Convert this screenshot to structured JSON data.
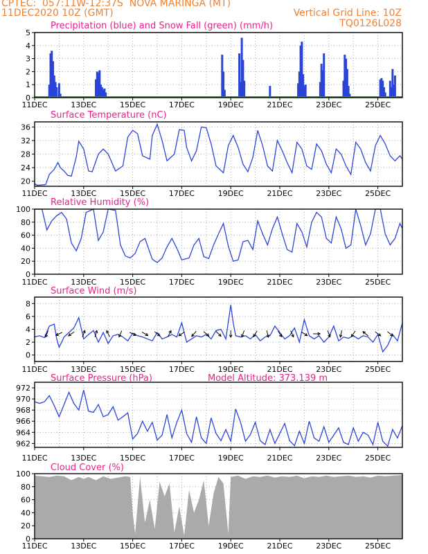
{
  "header": {
    "line1": "CPTEC:  057:11W-12:37S  NOVA MARINGA (MT)",
    "line2": "11DEC2020 10Z (GMT)",
    "grid_note": "Vertical Grid Line: 10Z",
    "model_code": "TQ0126L028"
  },
  "colors": {
    "title": "#e8208a",
    "header": "#f08030",
    "line": "#2a44d8",
    "precip": "#2a44d8",
    "snow": "#20a020",
    "cloud": "#aaaaaa",
    "axis": "#000000",
    "grid": "#999999"
  },
  "x_axis": {
    "date_range": [
      "2020-12-11T10Z",
      "2020-12-26T10Z"
    ],
    "tick_labels": [
      "11DEC",
      "13DEC",
      "15DEC",
      "17DEC",
      "19DEC",
      "21DEC",
      "23DEC",
      "25DEC"
    ],
    "tick_days": [
      0,
      2,
      4,
      6,
      8,
      10,
      12,
      14
    ],
    "grid": "vertical dotted lines at 10Z each day"
  },
  "chart_data": [
    {
      "id": "precip",
      "type": "bar",
      "title": "Precipitation (blue) and Snow Fall (green) (mm/h)",
      "ylim": [
        0,
        5
      ],
      "yticks": [
        "0",
        "1",
        "2",
        "3",
        "4",
        "5"
      ],
      "ytick_values": [
        0,
        1,
        2,
        3,
        4,
        5
      ],
      "series": [
        {
          "color_key": "precip",
          "x": [
            0.6,
            0.65,
            0.7,
            0.75,
            0.8,
            0.85,
            0.9,
            1.0,
            1.05,
            2.5,
            2.55,
            2.6,
            2.65,
            2.7,
            2.75,
            2.8,
            2.85,
            2.9,
            7.65,
            7.7,
            7.75,
            8.35,
            8.4,
            8.45,
            8.5,
            8.55,
            9.6,
            10.75,
            10.8,
            10.85,
            10.9,
            10.95,
            11.0,
            11.05,
            11.65,
            11.7,
            11.75,
            11.8,
            12.6,
            12.65,
            12.7,
            12.75,
            12.8,
            12.85,
            14.1,
            14.15,
            14.2,
            14.25,
            14.3,
            14.5,
            14.55,
            14.6,
            14.65,
            14.7
          ],
          "values": [
            1.0,
            3.4,
            3.6,
            2.8,
            1.7,
            1.2,
            0.8,
            1.1,
            0.3,
            1.4,
            2.0,
            1.9,
            2.1,
            1.0,
            0.8,
            0.6,
            0.7,
            0.4,
            3.3,
            2.0,
            0.6,
            3.4,
            1.2,
            4.6,
            2.9,
            1.3,
            0.9,
            1.1,
            2.0,
            4.0,
            4.3,
            1.8,
            0.9,
            1.0,
            1.2,
            2.6,
            2.1,
            3.4,
            1.3,
            3.3,
            3.0,
            2.2,
            0.9,
            0.3,
            1.4,
            1.5,
            1.3,
            0.8,
            0.4,
            1.3,
            0.8,
            2.2,
            1.0,
            1.7
          ]
        },
        {
          "color_key": "snow",
          "x": [
            0,
            15
          ],
          "values": [
            0,
            0
          ]
        }
      ]
    },
    {
      "id": "temp",
      "type": "line",
      "title": "Surface Temperature (nC)",
      "ylim": [
        18.5,
        37.5
      ],
      "yticks": [
        "20",
        "24",
        "28",
        "32",
        "36"
      ],
      "ytick_values": [
        20,
        24,
        28,
        32,
        36
      ],
      "series": [
        {
          "color_key": "line",
          "x": [
            0.0,
            0.1,
            0.3,
            0.45,
            0.6,
            0.8,
            0.95,
            1.05,
            1.2,
            1.35,
            1.5,
            1.7,
            1.8,
            2.0,
            2.2,
            2.35,
            2.6,
            2.8,
            3.0,
            3.3,
            3.6,
            3.8,
            4.0,
            4.2,
            4.4,
            4.7,
            4.8,
            5.0,
            5.2,
            5.4,
            5.7,
            5.9,
            6.1,
            6.2,
            6.4,
            6.6,
            6.8,
            7.0,
            7.2,
            7.4,
            7.7,
            7.9,
            8.1,
            8.3,
            8.5,
            8.7,
            8.9,
            9.1,
            9.3,
            9.5,
            9.7,
            9.9,
            10.1,
            10.3,
            10.5,
            10.7,
            10.9,
            11.1,
            11.3,
            11.5,
            11.7,
            11.9,
            12.1,
            12.3,
            12.5,
            12.7,
            12.9,
            13.1,
            13.3,
            13.5,
            13.7,
            13.9,
            14.1,
            14.3,
            14.5,
            14.7,
            14.9,
            15.0
          ],
          "values": [
            19.3,
            18.8,
            18.9,
            19.0,
            22.0,
            23.5,
            25.5,
            24.0,
            23.0,
            21.7,
            21.5,
            27.2,
            31.8,
            29.5,
            23.0,
            22.8,
            28.0,
            29.5,
            28.0,
            23.0,
            24.5,
            33.0,
            35.0,
            34.0,
            27.5,
            26.5,
            33.5,
            36.8,
            32.0,
            26.0,
            28.0,
            35.2,
            35.0,
            30.0,
            26.0,
            29.0,
            36.0,
            35.8,
            31.0,
            24.5,
            22.5,
            30.5,
            33.5,
            30.0,
            25.0,
            22.8,
            27.0,
            35.0,
            30.5,
            24.5,
            23.0,
            32.0,
            29.0,
            25.5,
            22.5,
            31.5,
            29.5,
            24.5,
            23.5,
            31.0,
            29.0,
            25.0,
            22.5,
            29.5,
            28.0,
            24.5,
            22.0,
            31.5,
            29.5,
            25.5,
            23.0,
            30.5,
            33.5,
            31.0,
            27.5,
            26.0,
            27.5,
            26.5
          ]
        }
      ]
    },
    {
      "id": "humidity",
      "type": "line",
      "title": "Relative Humidity (%)",
      "ylim": [
        0,
        100
      ],
      "yticks": [
        "0",
        "20",
        "40",
        "60",
        "80",
        "100"
      ],
      "ytick_values": [
        0,
        20,
        40,
        60,
        80,
        100
      ],
      "series": [
        {
          "color_key": "line",
          "x": [
            0.0,
            0.3,
            0.5,
            0.7,
            0.9,
            1.1,
            1.3,
            1.5,
            1.7,
            1.9,
            2.1,
            2.4,
            2.6,
            2.8,
            3.0,
            3.3,
            3.5,
            3.7,
            3.9,
            4.1,
            4.3,
            4.5,
            4.8,
            5.0,
            5.2,
            5.4,
            5.6,
            5.8,
            6.0,
            6.3,
            6.5,
            6.7,
            6.9,
            7.1,
            7.3,
            7.5,
            7.7,
            7.9,
            8.1,
            8.3,
            8.5,
            8.7,
            8.9,
            9.1,
            9.3,
            9.5,
            9.7,
            9.9,
            10.1,
            10.3,
            10.5,
            10.7,
            10.9,
            11.1,
            11.3,
            11.5,
            11.7,
            11.9,
            12.1,
            12.3,
            12.5,
            12.7,
            12.9,
            13.1,
            13.3,
            13.5,
            13.7,
            13.9,
            14.1,
            14.3,
            14.5,
            14.7,
            14.9,
            15.0
          ],
          "values": [
            100,
            100,
            68,
            82,
            90,
            95,
            85,
            48,
            36,
            55,
            95,
            100,
            52,
            65,
            100,
            98,
            45,
            28,
            25,
            32,
            50,
            55,
            23,
            18,
            25,
            42,
            55,
            40,
            22,
            25,
            45,
            55,
            27,
            24,
            45,
            62,
            78,
            43,
            20,
            22,
            50,
            52,
            38,
            82,
            62,
            45,
            70,
            88,
            62,
            38,
            34,
            78,
            65,
            42,
            80,
            95,
            88,
            55,
            48,
            88,
            70,
            40,
            45,
            100,
            75,
            45,
            62,
            100,
            100,
            62,
            45,
            55,
            78,
            70
          ]
        }
      ]
    },
    {
      "id": "wind",
      "type": "line",
      "title": "Surface Wind (m/s)",
      "ylim": [
        -1,
        9
      ],
      "yticks": [
        "0",
        "2",
        "4",
        "6",
        "8"
      ],
      "ytick_values": [
        0,
        2,
        4,
        6,
        8
      ],
      "series": [
        {
          "color_key": "line",
          "x": [
            0.0,
            0.2,
            0.4,
            0.6,
            0.8,
            0.9,
            1.0,
            1.2,
            1.4,
            1.6,
            1.8,
            2.0,
            2.2,
            2.4,
            2.6,
            2.8,
            3.0,
            3.2,
            3.4,
            3.6,
            3.8,
            4.0,
            4.2,
            4.4,
            4.6,
            4.8,
            5.0,
            5.2,
            5.4,
            5.6,
            5.8,
            6.0,
            6.2,
            6.4,
            6.6,
            6.8,
            7.0,
            7.2,
            7.4,
            7.6,
            7.8,
            8.0,
            8.1,
            8.2,
            8.4,
            8.6,
            8.8,
            9.0,
            9.2,
            9.4,
            9.6,
            9.8,
            10.0,
            10.2,
            10.4,
            10.6,
            10.8,
            11.0,
            11.2,
            11.4,
            11.6,
            11.8,
            12.0,
            12.2,
            12.4,
            12.6,
            12.8,
            13.0,
            13.2,
            13.4,
            13.6,
            13.8,
            14.0,
            14.2,
            14.4,
            14.6,
            14.8,
            15.0
          ],
          "values": [
            2.8,
            3.0,
            2.7,
            4.5,
            4.8,
            2.5,
            1.2,
            2.8,
            3.5,
            4.2,
            5.8,
            2.5,
            3.2,
            3.8,
            2.0,
            3.5,
            1.8,
            3.0,
            3.2,
            2.8,
            2.2,
            3.4,
            3.0,
            2.8,
            2.5,
            2.2,
            3.5,
            2.5,
            2.8,
            3.2,
            2.8,
            5.0,
            2.0,
            2.5,
            3.0,
            2.8,
            3.2,
            2.5,
            3.8,
            4.0,
            2.5,
            7.8,
            5.0,
            3.0,
            2.8,
            3.0,
            2.5,
            3.2,
            2.2,
            2.8,
            3.0,
            4.5,
            3.5,
            2.5,
            3.0,
            4.2,
            2.0,
            5.5,
            3.0,
            2.5,
            3.0,
            2.0,
            2.8,
            4.5,
            2.2,
            2.8,
            2.6,
            3.0,
            2.5,
            3.0,
            2.8,
            2.0,
            3.2,
            0.5,
            1.5,
            3.2,
            2.2,
            5.0
          ]
        }
      ],
      "vectors": {
        "x": [
          0.5,
          1.0,
          1.5,
          2.0,
          2.5,
          3.0,
          3.5,
          4.0,
          4.5,
          5.0,
          5.5,
          6.0,
          6.5,
          7.0,
          7.5,
          8.0,
          8.5,
          9.0,
          9.5,
          10.0,
          10.5,
          11.0,
          11.5,
          12.0,
          12.5,
          13.0,
          13.5,
          14.0,
          14.5
        ],
        "u": [
          -0.3,
          -1.0,
          -0.7,
          0.3,
          0.2,
          -0.4,
          -0.3,
          0.8,
          1.0,
          1.0,
          0.3,
          -0.6,
          -0.5,
          0.8,
          1.0,
          0.0,
          -0.3,
          -0.5,
          0.2,
          0.5,
          0.4,
          0.8,
          0.6,
          0.3,
          -0.2,
          -0.6,
          -0.6,
          0.8,
          1.0
        ],
        "v": [
          0.8,
          0.5,
          0.5,
          -0.8,
          -0.7,
          -0.8,
          0.7,
          0.4,
          0.6,
          0.8,
          -0.6,
          0.4,
          0.6,
          0.7,
          1.0,
          1.0,
          0.8,
          0.8,
          0.8,
          0.8,
          0.9,
          0.5,
          0.0,
          0.8,
          0.9,
          0.9,
          -0.5,
          0.6,
          0.8
        ]
      }
    },
    {
      "id": "pressure",
      "type": "line",
      "title": "Surface Pressure (hPa)",
      "annotation": "Model Altitude: 373.139 m",
      "ylim": [
        961.3,
        973
      ],
      "yticks": [
        "962",
        "964",
        "966",
        "968",
        "970",
        "972"
      ],
      "ytick_values": [
        962,
        964,
        966,
        968,
        970,
        972
      ],
      "series": [
        {
          "color_key": "line",
          "x": [
            0.0,
            0.2,
            0.4,
            0.6,
            0.8,
            1.0,
            1.2,
            1.4,
            1.6,
            1.8,
            2.0,
            2.2,
            2.4,
            2.6,
            2.8,
            3.0,
            3.2,
            3.4,
            3.6,
            3.8,
            4.0,
            4.2,
            4.4,
            4.6,
            4.8,
            5.0,
            5.2,
            5.4,
            5.6,
            5.8,
            6.0,
            6.2,
            6.4,
            6.6,
            6.8,
            7.0,
            7.2,
            7.4,
            7.6,
            7.8,
            8.0,
            8.2,
            8.4,
            8.6,
            8.8,
            9.0,
            9.2,
            9.4,
            9.6,
            9.8,
            10.0,
            10.2,
            10.4,
            10.6,
            10.8,
            11.0,
            11.2,
            11.4,
            11.6,
            11.8,
            12.0,
            12.2,
            12.4,
            12.6,
            12.8,
            13.0,
            13.2,
            13.4,
            13.6,
            13.8,
            14.0,
            14.2,
            14.4,
            14.6,
            14.8,
            15.0
          ],
          "values": [
            969.5,
            969.2,
            969.5,
            970.6,
            968.8,
            966.8,
            969.0,
            971.2,
            969.2,
            968.0,
            971.6,
            967.8,
            967.6,
            969.0,
            966.8,
            967.2,
            968.6,
            966.2,
            966.8,
            967.5,
            962.8,
            963.8,
            966.0,
            964.2,
            965.8,
            962.6,
            963.5,
            967.2,
            963.0,
            965.8,
            968.0,
            963.8,
            962.2,
            966.8,
            963.0,
            962.0,
            966.6,
            963.8,
            962.5,
            964.5,
            962.4,
            968.2,
            965.8,
            962.4,
            963.6,
            965.8,
            962.5,
            961.8,
            964.5,
            962.0,
            963.8,
            965.6,
            962.5,
            961.6,
            964.2,
            962.0,
            966.0,
            963.0,
            962.4,
            965.0,
            962.2,
            963.5,
            964.8,
            962.2,
            961.8,
            964.8,
            962.4,
            964.0,
            963.5,
            961.8,
            965.8,
            962.4,
            961.5,
            964.5,
            963.0,
            965.2
          ]
        }
      ]
    },
    {
      "id": "cloud",
      "type": "area",
      "title": "Cloud Cover (%)",
      "ylim": [
        0,
        100
      ],
      "yticks": [
        "0",
        "20",
        "40",
        "60",
        "80",
        "100"
      ],
      "ytick_values": [
        0,
        20,
        40,
        60,
        80,
        100
      ],
      "series": [
        {
          "color_key": "cloud",
          "x": [
            0.0,
            0.3,
            0.6,
            0.9,
            1.2,
            1.5,
            1.8,
            2.0,
            2.2,
            2.5,
            2.8,
            3.1,
            3.4,
            3.7,
            3.9,
            4.0,
            4.1,
            4.3,
            4.5,
            4.7,
            4.9,
            5.1,
            5.3,
            5.5,
            5.7,
            5.9,
            6.1,
            6.3,
            6.5,
            6.7,
            6.9,
            7.1,
            7.3,
            7.5,
            7.7,
            7.9,
            8.0,
            8.3,
            8.6,
            8.9,
            9.2,
            9.5,
            9.8,
            10.1,
            10.4,
            10.7,
            11.0,
            11.3,
            11.6,
            11.9,
            12.2,
            12.5,
            12.8,
            13.1,
            13.4,
            13.7,
            14.0,
            14.3,
            14.6,
            15.0
          ],
          "values": [
            97,
            96,
            95,
            97,
            96,
            90,
            95,
            92,
            95,
            90,
            96,
            92,
            94,
            96,
            95,
            40,
            8,
            95,
            25,
            60,
            15,
            88,
            65,
            85,
            10,
            50,
            5,
            75,
            40,
            60,
            90,
            20,
            70,
            95,
            85,
            8,
            95,
            97,
            92,
            96,
            95,
            97,
            94,
            96,
            95,
            97,
            93,
            96,
            95,
            97,
            95,
            96,
            97,
            95,
            96,
            94,
            97,
            96,
            97,
            98
          ]
        }
      ]
    }
  ]
}
